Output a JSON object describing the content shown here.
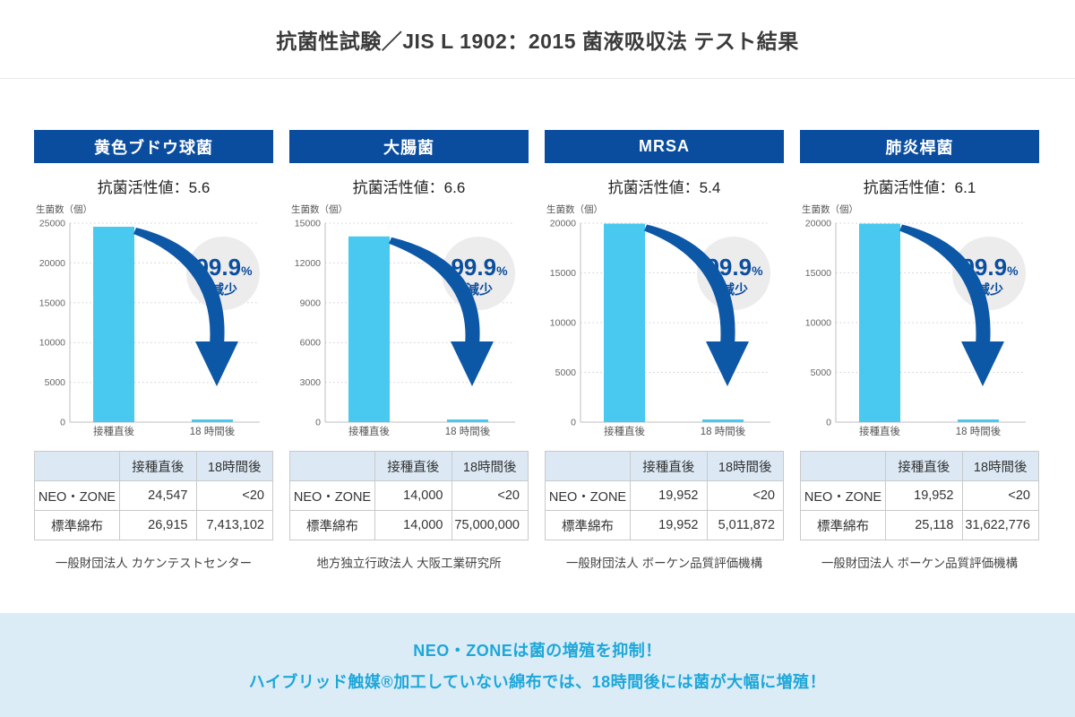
{
  "page_title": "抗菌性試験／JIS L 1902：2015 菌液吸収法 テスト結果",
  "colors": {
    "banner_navy": "#0a4d9e",
    "bar_cyan": "#49c8f0",
    "arrow_navy": "#0d57a7",
    "badge_bg": "#ececec",
    "badge_text": "#0b4e9e",
    "table_header_bg": "#dce9f4",
    "footer_bg": "#dcecf6",
    "footer_text": "#1ea7d9",
    "grid_gray": "#cfcfcf",
    "axis_gray": "#bfbfbf"
  },
  "panels": [
    {
      "header": "黄色ブドウ球菌",
      "activity_label": "抗菌活性値：5.6",
      "table": {
        "columns": [
          "",
          "接種直後",
          "18時間後"
        ],
        "rows": [
          [
            "NEO・ZONE",
            "24,547",
            "<20"
          ],
          [
            "標準綿布",
            "26,915",
            "7,413,102"
          ]
        ]
      },
      "source": "一般財団法人 カケンテストセンター"
    },
    {
      "header": "大腸菌",
      "activity_label": "抗菌活性値：6.6",
      "table": {
        "columns": [
          "",
          "接種直後",
          "18時間後"
        ],
        "rows": [
          [
            "NEO・ZONE",
            "14,000",
            "<20"
          ],
          [
            "標準綿布",
            "14,000",
            "75,000,000"
          ]
        ]
      },
      "source": "地方独立行政法人 大阪工業研究所"
    },
    {
      "header": "MRSA",
      "activity_label": "抗菌活性値：5.4",
      "table": {
        "columns": [
          "",
          "接種直後",
          "18時間後"
        ],
        "rows": [
          [
            "NEO・ZONE",
            "19,952",
            "<20"
          ],
          [
            "標準綿布",
            "19,952",
            "5,011,872"
          ]
        ]
      },
      "source": "一般財団法人 ボーケン品質評価機構"
    },
    {
      "header": "肺炎桿菌",
      "activity_label": "抗菌活性値：6.1",
      "table": {
        "columns": [
          "",
          "接種直後",
          "18時間後"
        ],
        "rows": [
          [
            "NEO・ZONE",
            "19,952",
            "<20"
          ],
          [
            "標準綿布",
            "25,118",
            "31,622,776"
          ]
        ]
      },
      "source": "一般財団法人 ボーケン品質評価機構"
    }
  ],
  "chart_data": [
    {
      "type": "bar",
      "title": "黄色ブドウ球菌",
      "ylabel": "生菌数（個）",
      "ylim": [
        0,
        25000
      ],
      "yticks": [
        0,
        5000,
        10000,
        15000,
        20000,
        25000
      ],
      "categories": [
        "接種直後",
        "18 時間後"
      ],
      "series": [
        {
          "name": "NEO・ZONE",
          "values": [
            24547,
            20
          ]
        }
      ],
      "badge_number": "99.9",
      "badge_unit": "%",
      "badge_label": "減少",
      "grid": true,
      "legend": "none"
    },
    {
      "type": "bar",
      "title": "大腸菌",
      "ylabel": "生菌数（個）",
      "ylim": [
        0,
        15000
      ],
      "yticks": [
        0,
        3000,
        6000,
        9000,
        12000,
        15000
      ],
      "categories": [
        "接種直後",
        "18 時間後"
      ],
      "series": [
        {
          "name": "NEO・ZONE",
          "values": [
            14000,
            20
          ]
        }
      ],
      "badge_number": "99.9",
      "badge_unit": "%",
      "badge_label": "減少",
      "grid": true,
      "legend": "none"
    },
    {
      "type": "bar",
      "title": "MRSA",
      "ylabel": "生菌数（個）",
      "ylim": [
        0,
        20000
      ],
      "yticks": [
        0,
        5000,
        10000,
        15000,
        20000
      ],
      "categories": [
        "接種直後",
        "18 時間後"
      ],
      "series": [
        {
          "name": "NEO・ZONE",
          "values": [
            19952,
            20
          ]
        }
      ],
      "badge_number": "99.9",
      "badge_unit": "%",
      "badge_label": "減少",
      "grid": true,
      "legend": "none"
    },
    {
      "type": "bar",
      "title": "肺炎桿菌",
      "ylabel": "生菌数（個）",
      "ylim": [
        0,
        20000
      ],
      "yticks": [
        0,
        5000,
        10000,
        15000,
        20000
      ],
      "categories": [
        "接種直後",
        "18 時間後"
      ],
      "series": [
        {
          "name": "NEO・ZONE",
          "values": [
            19952,
            20
          ]
        }
      ],
      "badge_number": "99.9",
      "badge_unit": "%",
      "badge_label": "減少",
      "grid": true,
      "legend": "none"
    }
  ],
  "footer": {
    "line1": "NEO・ZONEは菌の増殖を抑制！",
    "line2": "ハイブリッド触媒®加工していない綿布では、18時間後には菌が大幅に増殖！"
  }
}
